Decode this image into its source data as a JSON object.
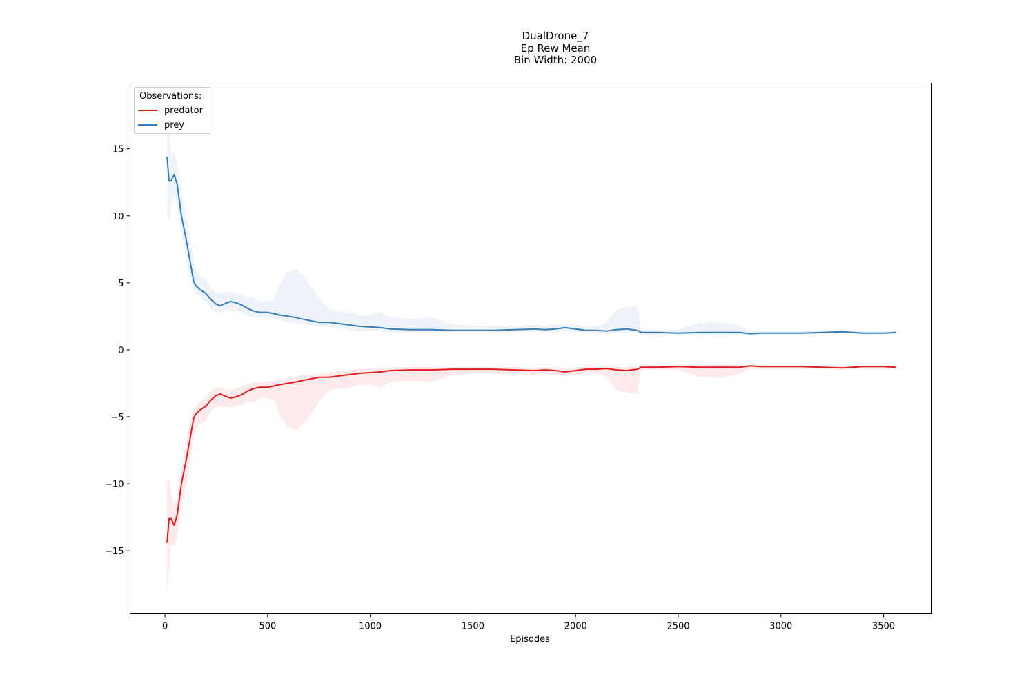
{
  "titles": {
    "line1": "DualDrone_7",
    "line2": "Ep Rew Mean",
    "line3": "Bin Width: 2000"
  },
  "chart_data": {
    "type": "line",
    "title": "DualDrone_7\nEp Rew Mean\nBin Width: 2000",
    "xlabel": "Episodes",
    "ylabel": "",
    "xlim": [
      -170,
      3735
    ],
    "ylim": [
      -19.7,
      19.9
    ],
    "xticks": [
      0,
      500,
      1000,
      1500,
      2000,
      2500,
      3000,
      3500
    ],
    "xtick_labels": [
      "0",
      "500",
      "1000",
      "1500",
      "2000",
      "2500",
      "3000",
      "3500"
    ],
    "yticks": [
      15,
      10,
      5,
      0,
      -5,
      -10,
      -15
    ],
    "ytick_labels": [
      "15",
      "10",
      "5",
      "0",
      "−5",
      "−10",
      "−15"
    ],
    "grid": false,
    "legend": {
      "title": "Observations:",
      "placement": "top-left",
      "entries": [
        "predator",
        "prey"
      ]
    },
    "series": [
      {
        "name": "predator",
        "color": "#e41a1c",
        "x": [
          10,
          20,
          30,
          45,
          60,
          80,
          100,
          120,
          140,
          150,
          170,
          200,
          220,
          250,
          270,
          300,
          320,
          350,
          380,
          400,
          430,
          460,
          500,
          530,
          560,
          600,
          640,
          650,
          700,
          750,
          800,
          850,
          900,
          950,
          1000,
          1050,
          1100,
          1200,
          1300,
          1400,
          1500,
          1600,
          1700,
          1800,
          1850,
          1900,
          1950,
          2000,
          2050,
          2100,
          2150,
          2200,
          2250,
          2300,
          2320,
          2400,
          2500,
          2600,
          2700,
          2800,
          2850,
          2900,
          3000,
          3100,
          3200,
          3300,
          3400,
          3500,
          3560
        ],
        "values": [
          -14.4,
          -12.6,
          -12.6,
          -13.1,
          -12.3,
          -10.0,
          -8.5,
          -6.8,
          -5.1,
          -4.8,
          -4.5,
          -4.2,
          -3.8,
          -3.4,
          -3.3,
          -3.5,
          -3.6,
          -3.5,
          -3.3,
          -3.1,
          -2.9,
          -2.8,
          -2.8,
          -2.7,
          -2.6,
          -2.5,
          -2.4,
          -2.35,
          -2.2,
          -2.05,
          -2.05,
          -1.95,
          -1.85,
          -1.75,
          -1.7,
          -1.65,
          -1.55,
          -1.5,
          -1.5,
          -1.45,
          -1.45,
          -1.45,
          -1.5,
          -1.55,
          -1.5,
          -1.55,
          -1.65,
          -1.55,
          -1.45,
          -1.45,
          -1.4,
          -1.5,
          -1.55,
          -1.45,
          -1.3,
          -1.3,
          -1.25,
          -1.3,
          -1.3,
          -1.3,
          -1.2,
          -1.25,
          -1.25,
          -1.25,
          -1.3,
          -1.35,
          -1.25,
          -1.25,
          -1.3
        ],
        "upper": [
          -9.8,
          -9.6,
          -10.8,
          -11.6,
          -10.9,
          -8.9,
          -7.1,
          -5.6,
          -4.5,
          -4.2,
          -3.9,
          -3.6,
          -3.1,
          -2.8,
          -2.8,
          -3.0,
          -3.0,
          -2.9,
          -2.7,
          -2.55,
          -2.45,
          -2.4,
          -2.4,
          -2.3,
          -2.2,
          -2.1,
          -2.0,
          -1.95,
          -1.85,
          -1.75,
          -1.7,
          -1.6,
          -1.5,
          -1.4,
          -1.4,
          -1.35,
          -1.3,
          -1.3,
          -1.3,
          -1.3,
          -1.3,
          -1.3,
          -1.3,
          -1.35,
          -1.3,
          -1.3,
          -1.4,
          -1.3,
          -1.25,
          -1.25,
          -1.2,
          -1.25,
          -1.3,
          -1.2,
          -1.15,
          -1.15,
          -1.15,
          -1.15,
          -1.1,
          -1.15,
          -1.1,
          -1.15,
          -1.15,
          -1.15,
          -1.2,
          -1.25,
          -1.15,
          -1.15,
          -1.2
        ],
        "lower": [
          -18.0,
          -16.5,
          -14.5,
          -14.7,
          -14.0,
          -11.5,
          -10.3,
          -8.6,
          -6.5,
          -5.9,
          -5.5,
          -5.3,
          -4.6,
          -4.3,
          -4.2,
          -4.3,
          -4.3,
          -4.2,
          -4.1,
          -3.9,
          -3.9,
          -3.6,
          -3.6,
          -3.7,
          -4.9,
          -5.8,
          -6.0,
          -5.9,
          -5.0,
          -3.9,
          -3.0,
          -2.9,
          -2.8,
          -2.6,
          -2.6,
          -2.8,
          -2.4,
          -2.3,
          -2.4,
          -1.9,
          -1.8,
          -1.8,
          -1.8,
          -1.85,
          -1.8,
          -1.9,
          -1.95,
          -1.85,
          -1.8,
          -1.8,
          -2.0,
          -3.0,
          -3.2,
          -3.3,
          -1.5,
          -1.5,
          -1.5,
          -2.0,
          -2.1,
          -1.8,
          -1.4,
          -1.4,
          -1.4,
          -1.4,
          -1.45,
          -1.5,
          -1.4,
          -1.4,
          -1.45
        ]
      },
      {
        "name": "prey",
        "color": "#377eb8",
        "x": [
          10,
          20,
          30,
          45,
          60,
          80,
          100,
          120,
          140,
          150,
          170,
          200,
          220,
          250,
          270,
          300,
          320,
          350,
          380,
          400,
          430,
          460,
          500,
          530,
          560,
          600,
          640,
          650,
          700,
          750,
          800,
          850,
          900,
          950,
          1000,
          1050,
          1100,
          1200,
          1300,
          1400,
          1500,
          1600,
          1700,
          1800,
          1850,
          1900,
          1950,
          2000,
          2050,
          2100,
          2150,
          2200,
          2250,
          2300,
          2320,
          2400,
          2500,
          2600,
          2700,
          2800,
          2850,
          2900,
          3000,
          3100,
          3200,
          3300,
          3400,
          3500,
          3560
        ],
        "values": [
          14.4,
          12.6,
          12.6,
          13.1,
          12.3,
          10.0,
          8.5,
          6.8,
          5.1,
          4.8,
          4.5,
          4.2,
          3.8,
          3.4,
          3.3,
          3.5,
          3.6,
          3.5,
          3.3,
          3.1,
          2.9,
          2.8,
          2.8,
          2.7,
          2.6,
          2.5,
          2.4,
          2.35,
          2.2,
          2.05,
          2.05,
          1.95,
          1.85,
          1.75,
          1.7,
          1.65,
          1.55,
          1.5,
          1.5,
          1.45,
          1.45,
          1.45,
          1.5,
          1.55,
          1.5,
          1.55,
          1.65,
          1.55,
          1.45,
          1.45,
          1.4,
          1.5,
          1.55,
          1.45,
          1.3,
          1.3,
          1.25,
          1.3,
          1.3,
          1.3,
          1.2,
          1.25,
          1.25,
          1.25,
          1.3,
          1.35,
          1.25,
          1.25,
          1.3
        ],
        "upper": [
          18.0,
          16.5,
          14.5,
          14.7,
          14.0,
          11.5,
          10.3,
          8.6,
          6.5,
          5.9,
          5.5,
          5.3,
          4.6,
          4.3,
          4.2,
          4.3,
          4.3,
          4.2,
          4.1,
          3.9,
          3.9,
          3.6,
          3.6,
          3.7,
          4.9,
          5.8,
          6.0,
          5.9,
          5.0,
          3.9,
          3.0,
          2.9,
          2.8,
          2.6,
          2.6,
          2.8,
          2.4,
          2.3,
          2.4,
          1.9,
          1.8,
          1.8,
          1.8,
          1.85,
          1.8,
          1.9,
          1.95,
          1.85,
          1.8,
          1.8,
          2.0,
          3.0,
          3.2,
          3.3,
          1.5,
          1.5,
          1.5,
          2.0,
          2.1,
          1.8,
          1.4,
          1.4,
          1.4,
          1.4,
          1.45,
          1.5,
          1.4,
          1.4,
          1.45
        ],
        "lower": [
          9.8,
          9.6,
          10.8,
          11.6,
          10.9,
          8.9,
          7.1,
          5.6,
          4.5,
          4.2,
          3.9,
          3.6,
          3.1,
          2.8,
          2.8,
          3.0,
          3.0,
          2.9,
          2.7,
          2.55,
          2.45,
          2.4,
          2.4,
          2.3,
          2.2,
          2.1,
          2.0,
          1.95,
          1.85,
          1.75,
          1.7,
          1.6,
          1.5,
          1.4,
          1.4,
          1.35,
          1.3,
          1.3,
          1.3,
          1.3,
          1.3,
          1.3,
          1.3,
          1.35,
          1.3,
          1.3,
          1.4,
          1.3,
          1.25,
          1.25,
          1.2,
          1.25,
          1.3,
          1.2,
          1.15,
          1.15,
          1.15,
          1.15,
          1.1,
          1.15,
          1.1,
          1.15,
          1.15,
          1.15,
          1.2,
          1.25,
          1.15,
          1.15,
          1.2
        ]
      }
    ]
  }
}
